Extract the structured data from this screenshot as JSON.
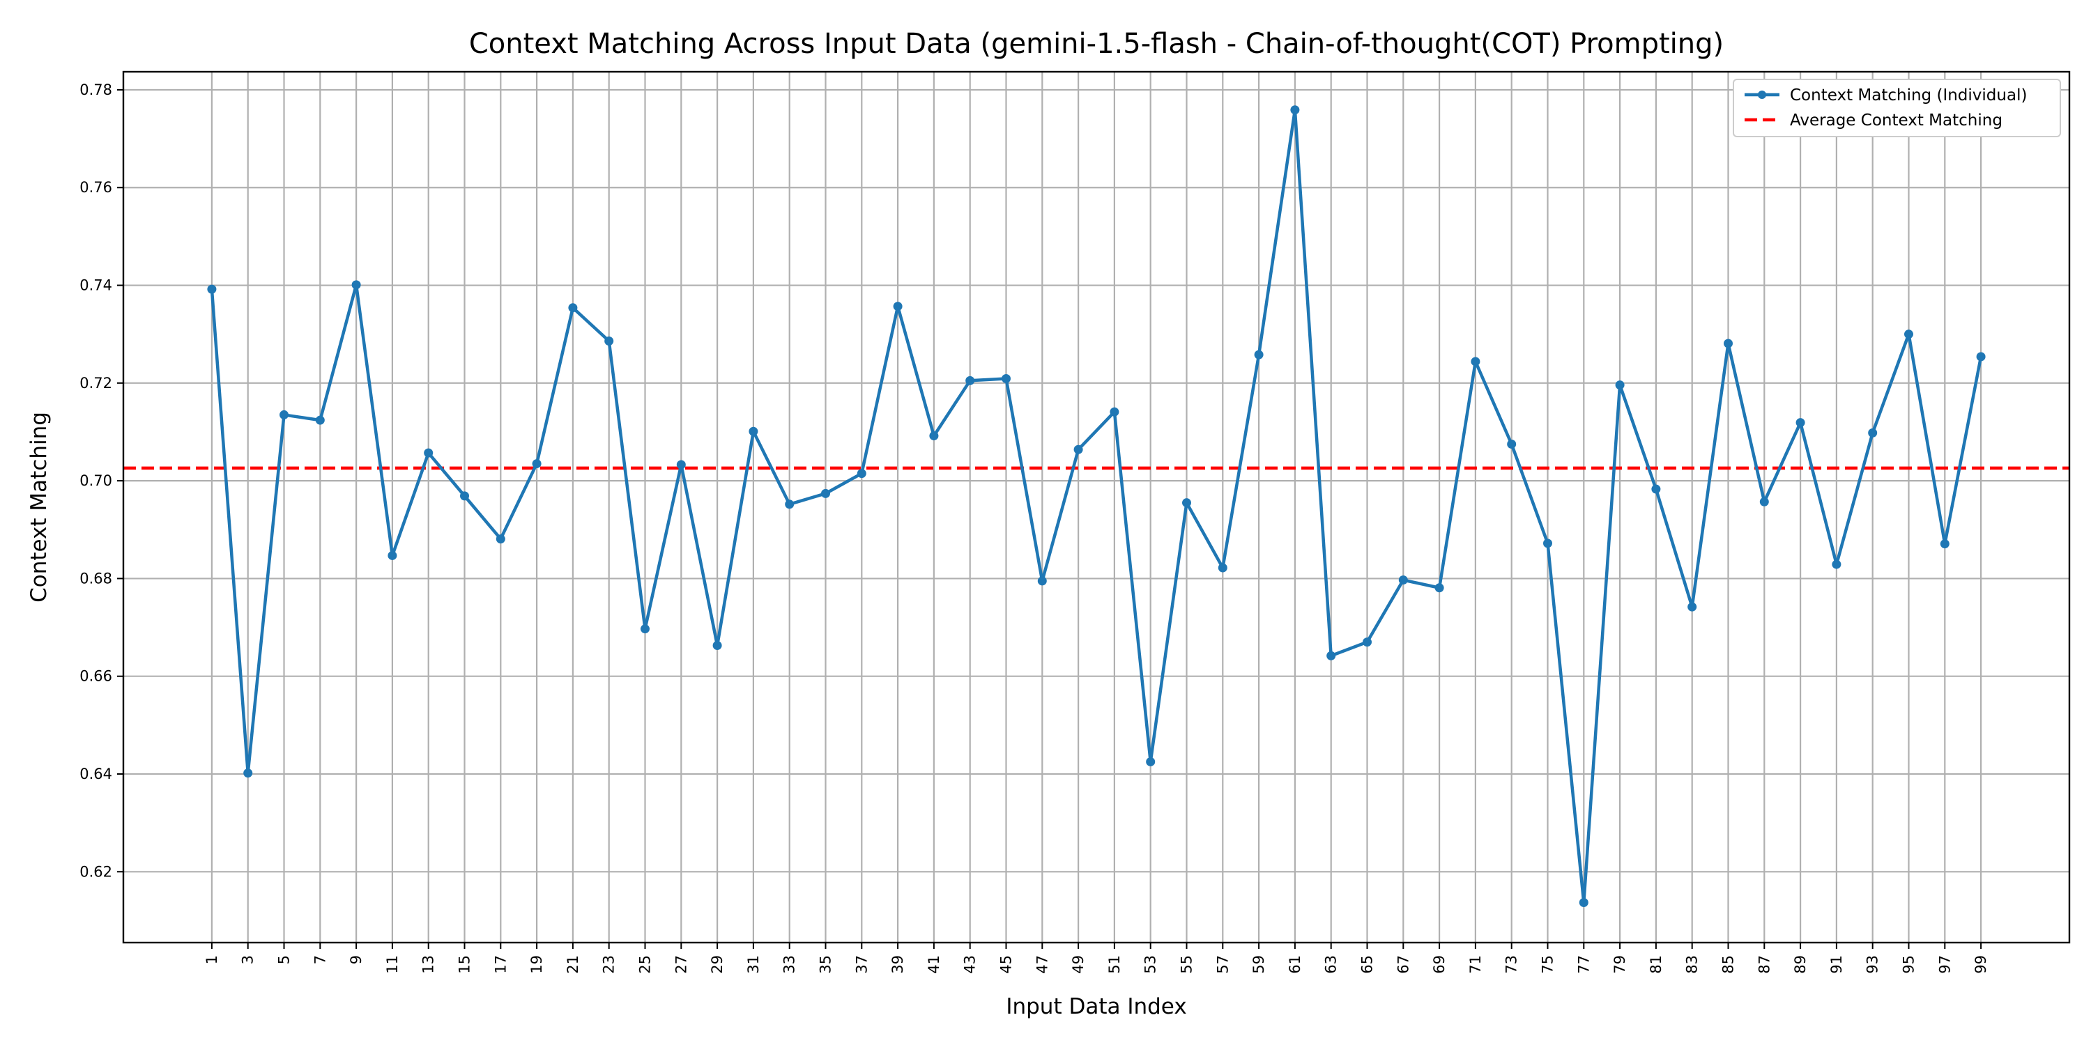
{
  "chart_data": {
    "type": "line",
    "title": "Context Matching Across Input Data (gemini-1.5-flash - Chain-of-thought(COT) Prompting)",
    "xlabel": "Input Data Index",
    "ylabel": "Context Matching",
    "x": [
      1,
      3,
      5,
      7,
      9,
      11,
      13,
      15,
      17,
      19,
      21,
      23,
      25,
      27,
      29,
      31,
      33,
      35,
      37,
      39,
      41,
      43,
      45,
      47,
      49,
      51,
      53,
      55,
      57,
      59,
      61,
      63,
      65,
      67,
      69,
      71,
      73,
      75,
      77,
      79,
      81,
      83,
      85,
      87,
      89,
      91,
      93,
      95,
      97,
      99
    ],
    "x_ticks": [
      "1",
      "3",
      "5",
      "7",
      "9",
      "11",
      "13",
      "15",
      "17",
      "19",
      "21",
      "23",
      "25",
      "27",
      "29",
      "31",
      "33",
      "35",
      "37",
      "39",
      "41",
      "43",
      "45",
      "47",
      "49",
      "51",
      "53",
      "55",
      "57",
      "59",
      "61",
      "63",
      "65",
      "67",
      "69",
      "71",
      "73",
      "75",
      "77",
      "79",
      "81",
      "83",
      "85",
      "87",
      "89",
      "91",
      "93",
      "95",
      "97",
      "99"
    ],
    "y_ticks": [
      "0.62",
      "0.64",
      "0.66",
      "0.68",
      "0.70",
      "0.72",
      "0.74",
      "0.76",
      "0.78"
    ],
    "ylim": [
      0.6055,
      0.7837
    ],
    "grid": true,
    "legend_position": "top-right",
    "series": [
      {
        "name": "Context Matching (Individual)",
        "color": "#1f77b4",
        "style": "solid-line-with-circle-markers",
        "values": [
          0.7392,
          0.6402,
          0.7135,
          0.7124,
          0.7401,
          0.6847,
          0.7057,
          0.6969,
          0.6881,
          0.7035,
          0.7354,
          0.7286,
          0.6697,
          0.7033,
          0.6663,
          0.7101,
          0.6952,
          0.6974,
          0.7015,
          0.7357,
          0.7092,
          0.7205,
          0.7209,
          0.6795,
          0.7064,
          0.7141,
          0.6425,
          0.6955,
          0.6822,
          0.7258,
          0.7759,
          0.6642,
          0.667,
          0.6797,
          0.6781,
          0.7244,
          0.7075,
          0.6872,
          0.6137,
          0.7196,
          0.6983,
          0.6742,
          0.7281,
          0.6957,
          0.7119,
          0.6829,
          0.7098,
          0.73,
          0.6871,
          0.7254
        ]
      },
      {
        "name": "Average Context Matching",
        "color": "#ff0000",
        "style": "dashed-horizontal-line",
        "value": 0.7026
      }
    ]
  }
}
